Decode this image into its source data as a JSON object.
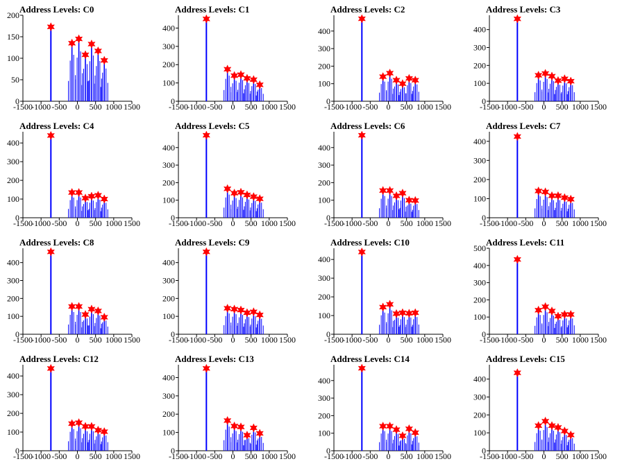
{
  "figure": {
    "title_prefix": "Address Levels: ",
    "x_ticks": [
      -1500,
      -1000,
      -500,
      0,
      500,
      1000,
      1500
    ],
    "xlim": [
      -1500,
      1500
    ],
    "colors": {
      "spike": "#0000ff",
      "marker": "#ff0000",
      "axis": "#000000"
    }
  },
  "chart_data": [
    {
      "type": "histogram",
      "title": "Address Levels: C0",
      "ylim": [
        0,
        200
      ],
      "y_ticks": [
        0,
        50,
        100,
        150,
        200
      ],
      "peaks": [
        {
          "x": -730,
          "y": 173
        },
        {
          "x": -150,
          "y": 135
        },
        {
          "x": 40,
          "y": 145
        },
        {
          "x": 220,
          "y": 108
        },
        {
          "x": 390,
          "y": 133
        },
        {
          "x": 570,
          "y": 117
        },
        {
          "x": 740,
          "y": 95
        }
      ]
    },
    {
      "type": "histogram",
      "title": "Address Levels: C1",
      "ylim": [
        0,
        470
      ],
      "y_ticks": [
        0,
        100,
        200,
        300,
        400
      ],
      "peaks": [
        {
          "x": -730,
          "y": 450
        },
        {
          "x": -150,
          "y": 175
        },
        {
          "x": 40,
          "y": 140
        },
        {
          "x": 220,
          "y": 145
        },
        {
          "x": 390,
          "y": 125
        },
        {
          "x": 570,
          "y": 118
        },
        {
          "x": 740,
          "y": 90
        }
      ]
    },
    {
      "type": "histogram",
      "title": "Address Levels: C2",
      "ylim": [
        0,
        490
      ],
      "y_ticks": [
        0,
        100,
        200,
        300,
        400
      ],
      "peaks": [
        {
          "x": -730,
          "y": 470
        },
        {
          "x": -150,
          "y": 140
        },
        {
          "x": 40,
          "y": 160
        },
        {
          "x": 220,
          "y": 120
        },
        {
          "x": 390,
          "y": 100
        },
        {
          "x": 570,
          "y": 130
        },
        {
          "x": 740,
          "y": 120
        }
      ]
    },
    {
      "type": "histogram",
      "title": "Address Levels: C3",
      "ylim": [
        0,
        480
      ],
      "y_ticks": [
        0,
        100,
        200,
        300,
        400
      ],
      "peaks": [
        {
          "x": -730,
          "y": 460
        },
        {
          "x": -150,
          "y": 145
        },
        {
          "x": 40,
          "y": 155
        },
        {
          "x": 220,
          "y": 140
        },
        {
          "x": 390,
          "y": 115
        },
        {
          "x": 570,
          "y": 125
        },
        {
          "x": 740,
          "y": 112
        }
      ]
    },
    {
      "type": "histogram",
      "title": "Address Levels: C4",
      "ylim": [
        0,
        460
      ],
      "y_ticks": [
        0,
        100,
        200,
        300,
        400
      ],
      "peaks": [
        {
          "x": -730,
          "y": 440
        },
        {
          "x": -150,
          "y": 135
        },
        {
          "x": 40,
          "y": 135
        },
        {
          "x": 220,
          "y": 105
        },
        {
          "x": 390,
          "y": 115
        },
        {
          "x": 570,
          "y": 120
        },
        {
          "x": 740,
          "y": 100
        }
      ]
    },
    {
      "type": "histogram",
      "title": "Address Levels: C5",
      "ylim": [
        0,
        490
      ],
      "y_ticks": [
        0,
        100,
        200,
        300,
        400
      ],
      "peaks": [
        {
          "x": -730,
          "y": 470
        },
        {
          "x": -150,
          "y": 165
        },
        {
          "x": 40,
          "y": 140
        },
        {
          "x": 220,
          "y": 145
        },
        {
          "x": 390,
          "y": 130
        },
        {
          "x": 570,
          "y": 120
        },
        {
          "x": 740,
          "y": 108
        }
      ]
    },
    {
      "type": "histogram",
      "title": "Address Levels: C6",
      "ylim": [
        0,
        490
      ],
      "y_ticks": [
        0,
        100,
        200,
        300,
        400
      ],
      "peaks": [
        {
          "x": -730,
          "y": 470
        },
        {
          "x": -150,
          "y": 155
        },
        {
          "x": 40,
          "y": 155
        },
        {
          "x": 220,
          "y": 125
        },
        {
          "x": 390,
          "y": 140
        },
        {
          "x": 570,
          "y": 100
        },
        {
          "x": 740,
          "y": 98
        }
      ]
    },
    {
      "type": "histogram",
      "title": "Address Levels: C7",
      "ylim": [
        0,
        450
      ],
      "y_ticks": [
        0,
        100,
        200,
        300,
        400
      ],
      "peaks": [
        {
          "x": -730,
          "y": 425
        },
        {
          "x": -150,
          "y": 140
        },
        {
          "x": 40,
          "y": 135
        },
        {
          "x": 220,
          "y": 115
        },
        {
          "x": 390,
          "y": 115
        },
        {
          "x": 570,
          "y": 105
        },
        {
          "x": 740,
          "y": 97
        }
      ]
    },
    {
      "type": "histogram",
      "title": "Address Levels: C8",
      "ylim": [
        0,
        480
      ],
      "y_ticks": [
        0,
        100,
        200,
        300,
        400
      ],
      "peaks": [
        {
          "x": -730,
          "y": 460
        },
        {
          "x": -150,
          "y": 155
        },
        {
          "x": 40,
          "y": 155
        },
        {
          "x": 220,
          "y": 110
        },
        {
          "x": 390,
          "y": 140
        },
        {
          "x": 570,
          "y": 130
        },
        {
          "x": 740,
          "y": 95
        }
      ]
    },
    {
      "type": "histogram",
      "title": "Address Levels: C9",
      "ylim": [
        0,
        480
      ],
      "y_ticks": [
        0,
        100,
        200,
        300,
        400
      ],
      "peaks": [
        {
          "x": -730,
          "y": 460
        },
        {
          "x": -150,
          "y": 145
        },
        {
          "x": 40,
          "y": 140
        },
        {
          "x": 220,
          "y": 135
        },
        {
          "x": 390,
          "y": 120
        },
        {
          "x": 570,
          "y": 125
        },
        {
          "x": 740,
          "y": 108
        }
      ]
    },
    {
      "type": "histogram",
      "title": "Address Levels: C10",
      "ylim": [
        0,
        460
      ],
      "y_ticks": [
        0,
        100,
        200,
        300,
        400
      ],
      "peaks": [
        {
          "x": -730,
          "y": 440
        },
        {
          "x": -150,
          "y": 145
        },
        {
          "x": 40,
          "y": 160
        },
        {
          "x": 220,
          "y": 110
        },
        {
          "x": 390,
          "y": 115
        },
        {
          "x": 570,
          "y": 112
        },
        {
          "x": 740,
          "y": 115
        }
      ]
    },
    {
      "type": "histogram",
      "title": "Address Levels: C11",
      "ylim": [
        0,
        500
      ],
      "y_ticks": [
        0,
        100,
        200,
        300,
        400,
        500
      ],
      "peaks": [
        {
          "x": -730,
          "y": 435
        },
        {
          "x": -150,
          "y": 140
        },
        {
          "x": 40,
          "y": 160
        },
        {
          "x": 220,
          "y": 135
        },
        {
          "x": 390,
          "y": 105
        },
        {
          "x": 570,
          "y": 115
        },
        {
          "x": 740,
          "y": 115
        }
      ]
    },
    {
      "type": "histogram",
      "title": "Address Levels: C12",
      "ylim": [
        0,
        460
      ],
      "y_ticks": [
        0,
        100,
        200,
        300,
        400
      ],
      "peaks": [
        {
          "x": -730,
          "y": 440
        },
        {
          "x": -150,
          "y": 145
        },
        {
          "x": 40,
          "y": 150
        },
        {
          "x": 220,
          "y": 130
        },
        {
          "x": 390,
          "y": 130
        },
        {
          "x": 570,
          "y": 110
        },
        {
          "x": 740,
          "y": 102
        }
      ]
    },
    {
      "type": "histogram",
      "title": "Address Levels: C13",
      "ylim": [
        0,
        470
      ],
      "y_ticks": [
        0,
        100,
        200,
        300,
        400
      ],
      "peaks": [
        {
          "x": -730,
          "y": 450
        },
        {
          "x": -150,
          "y": 165
        },
        {
          "x": 40,
          "y": 135
        },
        {
          "x": 220,
          "y": 130
        },
        {
          "x": 390,
          "y": 85
        },
        {
          "x": 570,
          "y": 125
        },
        {
          "x": 740,
          "y": 95
        }
      ]
    },
    {
      "type": "histogram",
      "title": "Address Levels: C14",
      "ylim": [
        0,
        490
      ],
      "y_ticks": [
        0,
        100,
        200,
        300,
        400
      ],
      "peaks": [
        {
          "x": -730,
          "y": 470
        },
        {
          "x": -150,
          "y": 140
        },
        {
          "x": 40,
          "y": 140
        },
        {
          "x": 220,
          "y": 120
        },
        {
          "x": 390,
          "y": 85
        },
        {
          "x": 570,
          "y": 125
        },
        {
          "x": 740,
          "y": 103
        }
      ]
    },
    {
      "type": "histogram",
      "title": "Address Levels: C15",
      "ylim": [
        0,
        480
      ],
      "y_ticks": [
        0,
        100,
        200,
        300,
        400
      ],
      "peaks": [
        {
          "x": -730,
          "y": 435
        },
        {
          "x": -150,
          "y": 140
        },
        {
          "x": 40,
          "y": 165
        },
        {
          "x": 220,
          "y": 140
        },
        {
          "x": 390,
          "y": 130
        },
        {
          "x": 570,
          "y": 110
        },
        {
          "x": 740,
          "y": 88
        }
      ]
    }
  ]
}
